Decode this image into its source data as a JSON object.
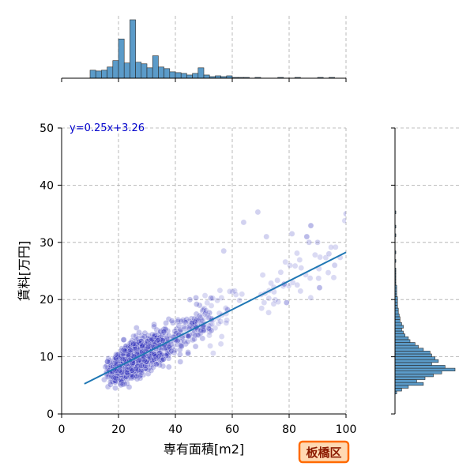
{
  "chart_data": {
    "type": "scatter",
    "xlabel": "専有面積[m2]",
    "ylabel": "賃料[万円]",
    "xlim": [
      0,
      100
    ],
    "ylim": [
      0,
      50
    ],
    "x_ticks": [
      0,
      20,
      40,
      60,
      80,
      100
    ],
    "y_ticks": [
      0,
      10,
      20,
      30,
      40,
      50
    ],
    "grid": true,
    "annotation": "y=0.25x+3.26",
    "badge": "板橋区",
    "regression": {
      "slope": 0.25,
      "intercept": 3.26,
      "x_range": [
        8,
        100
      ]
    },
    "scatter_color": "#3333bb",
    "hist_color": "#5b9bc9",
    "line_color": "#1f77b4",
    "x_hist": {
      "bin_width": 2,
      "start": 8,
      "counts": [
        0,
        10,
        9,
        10,
        14,
        22,
        49,
        19,
        73,
        20,
        18,
        13,
        28,
        14,
        12,
        8,
        7,
        6,
        4,
        6,
        13,
        4,
        2,
        3,
        2,
        3,
        1,
        1,
        1,
        0,
        1,
        0,
        0,
        0,
        1,
        0,
        0,
        1,
        0,
        0,
        0,
        1,
        0,
        1,
        0,
        0
      ]
    },
    "y_hist": {
      "bin_width": 0.5,
      "start": 3.5,
      "counts": [
        2,
        8,
        16,
        34,
        26,
        36,
        46,
        56,
        72,
        60,
        44,
        52,
        48,
        44,
        42,
        34,
        28,
        24,
        18,
        16,
        12,
        10,
        8,
        10,
        8,
        6,
        6,
        5,
        4,
        4,
        3,
        3,
        3,
        3,
        2,
        2,
        2,
        2,
        1,
        1,
        1,
        1,
        1,
        1,
        0,
        0,
        1,
        0,
        0,
        1,
        0,
        0,
        0,
        0,
        0,
        1,
        0,
        0,
        1,
        0,
        0,
        0,
        0,
        1
      ]
    }
  }
}
